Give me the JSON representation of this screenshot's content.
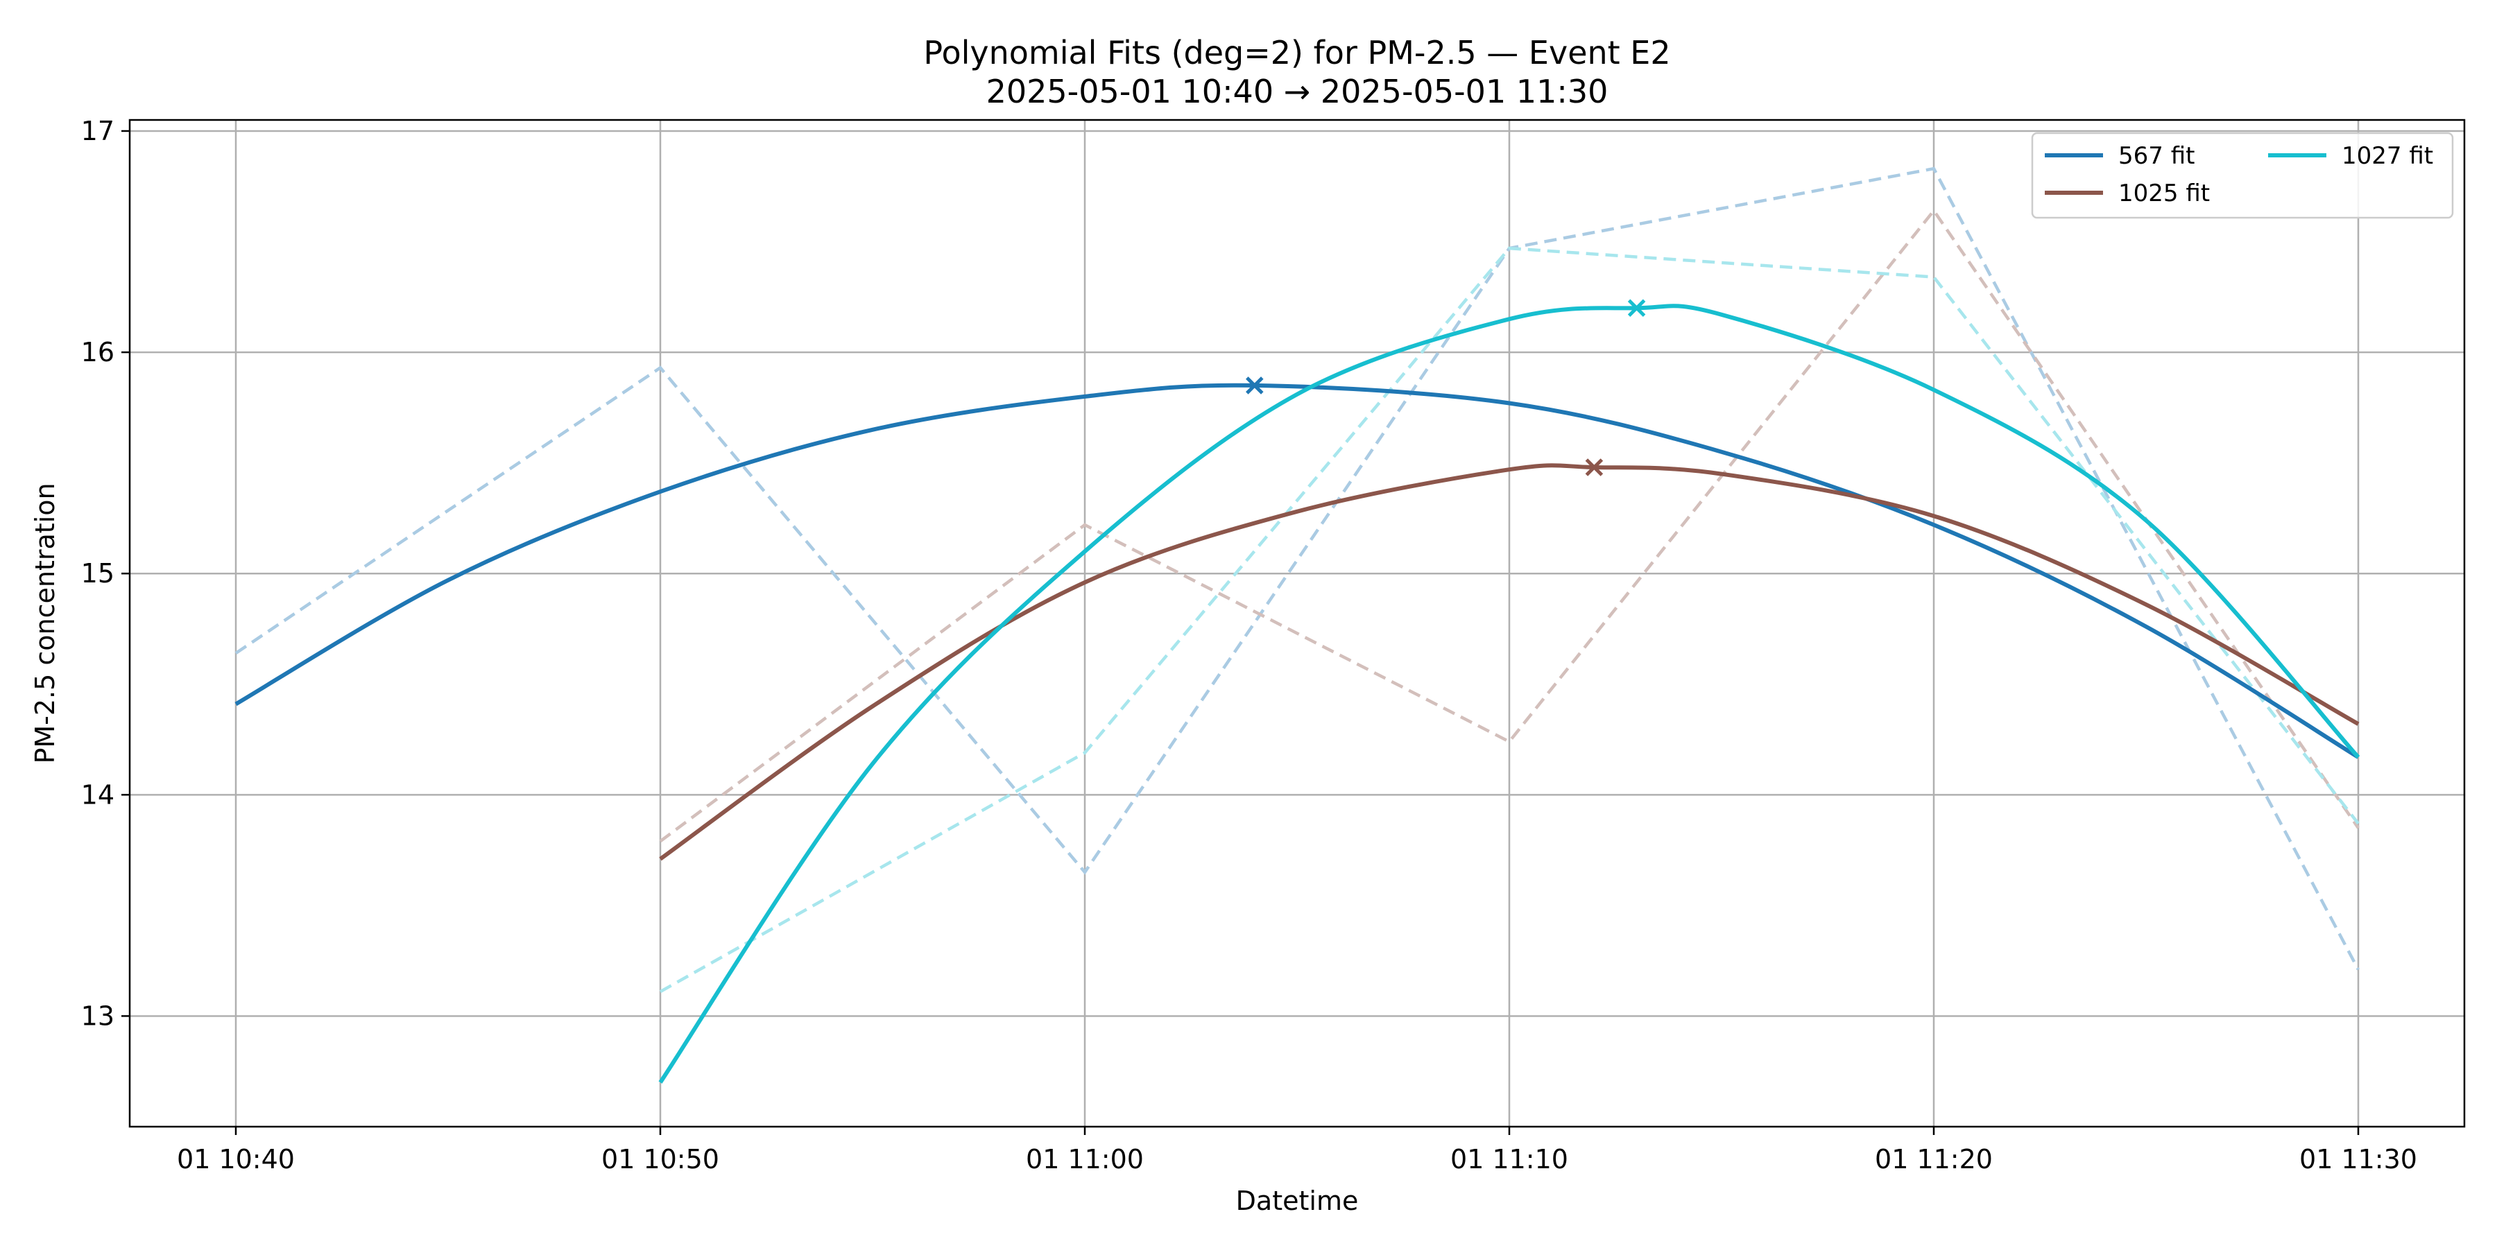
{
  "chart_data": {
    "type": "line",
    "title": "Polynomial Fits (deg=2) for PM-2.5 — Event E2",
    "subtitle": "2025-05-01 10:40 → 2025-05-01 11:30",
    "xlabel": "Datetime",
    "ylabel": "PM-2.5 concentration",
    "x_ticks": [
      "01 10:40",
      "01 10:50",
      "01 11:00",
      "01 11:10",
      "01 11:20",
      "01 11:30"
    ],
    "x_tick_times": [
      "2025-05-01 10:40",
      "2025-05-01 10:50",
      "2025-05-01 11:00",
      "2025-05-01 11:10",
      "2025-05-01 11:20",
      "2025-05-01 11:30"
    ],
    "xlim": [
      "2025-05-01 10:37:30",
      "2025-05-01 11:32:30"
    ],
    "y_ticks": [
      13,
      14,
      15,
      16,
      17
    ],
    "ylim": [
      12.5,
      17.05
    ],
    "grid": true,
    "legend_position": "top-right",
    "legend_columns": 2,
    "series": [
      {
        "name": "567 fit",
        "color": "#1f77b4",
        "raw_x": [
          "2025-05-01 10:40",
          "2025-05-01 10:50",
          "2025-05-01 11:00",
          "2025-05-01 11:10",
          "2025-05-01 11:20",
          "2025-05-01 11:30"
        ],
        "raw_y": [
          14.64,
          15.93,
          13.65,
          16.47,
          16.83,
          13.21
        ],
        "fit_x": [
          "2025-05-01 10:40",
          "2025-05-01 10:45",
          "2025-05-01 10:50",
          "2025-05-01 10:55",
          "2025-05-01 11:00",
          "2025-05-01 11:04",
          "2025-05-01 11:10",
          "2025-05-01 11:15",
          "2025-05-01 11:20",
          "2025-05-01 11:25",
          "2025-05-01 11:30"
        ],
        "fit_y": [
          14.41,
          14.97,
          15.37,
          15.65,
          15.8,
          15.85,
          15.77,
          15.55,
          15.22,
          14.76,
          14.17
        ],
        "peak_x": "2025-05-01 11:04",
        "peak_y": 15.85
      },
      {
        "name": "1025 fit",
        "color": "#8c564b",
        "raw_x": [
          "2025-05-01 10:50",
          "2025-05-01 11:00",
          "2025-05-01 11:10",
          "2025-05-01 11:20",
          "2025-05-01 11:30"
        ],
        "raw_y": [
          13.79,
          15.22,
          14.24,
          16.64,
          13.85
        ],
        "fit_x": [
          "2025-05-01 10:50",
          "2025-05-01 10:55",
          "2025-05-01 11:00",
          "2025-05-01 11:05",
          "2025-05-01 11:10",
          "2025-05-01 11:12",
          "2025-05-01 11:15",
          "2025-05-01 11:20",
          "2025-05-01 11:25",
          "2025-05-01 11:30"
        ],
        "fit_y": [
          13.71,
          14.4,
          14.96,
          15.28,
          15.47,
          15.48,
          15.45,
          15.26,
          14.86,
          14.32
        ],
        "peak_x": "2025-05-01 11:12",
        "peak_y": 15.48
      },
      {
        "name": "1027 fit",
        "color": "#17becf",
        "raw_x": [
          "2025-05-01 10:50",
          "2025-05-01 11:00",
          "2025-05-01 11:10",
          "2025-05-01 11:20",
          "2025-05-01 11:30"
        ],
        "raw_y": [
          13.11,
          14.19,
          16.47,
          16.34,
          13.87
        ],
        "fit_x": [
          "2025-05-01 10:50",
          "2025-05-01 10:55",
          "2025-05-01 11:00",
          "2025-05-01 11:05",
          "2025-05-01 11:10",
          "2025-05-01 11:13",
          "2025-05-01 11:15",
          "2025-05-01 11:20",
          "2025-05-01 11:25",
          "2025-05-01 11:30"
        ],
        "fit_y": [
          12.7,
          14.14,
          15.1,
          15.81,
          16.15,
          16.2,
          16.17,
          15.83,
          15.24,
          14.17
        ],
        "peak_x": "2025-05-01 11:13",
        "peak_y": 16.2
      }
    ]
  }
}
